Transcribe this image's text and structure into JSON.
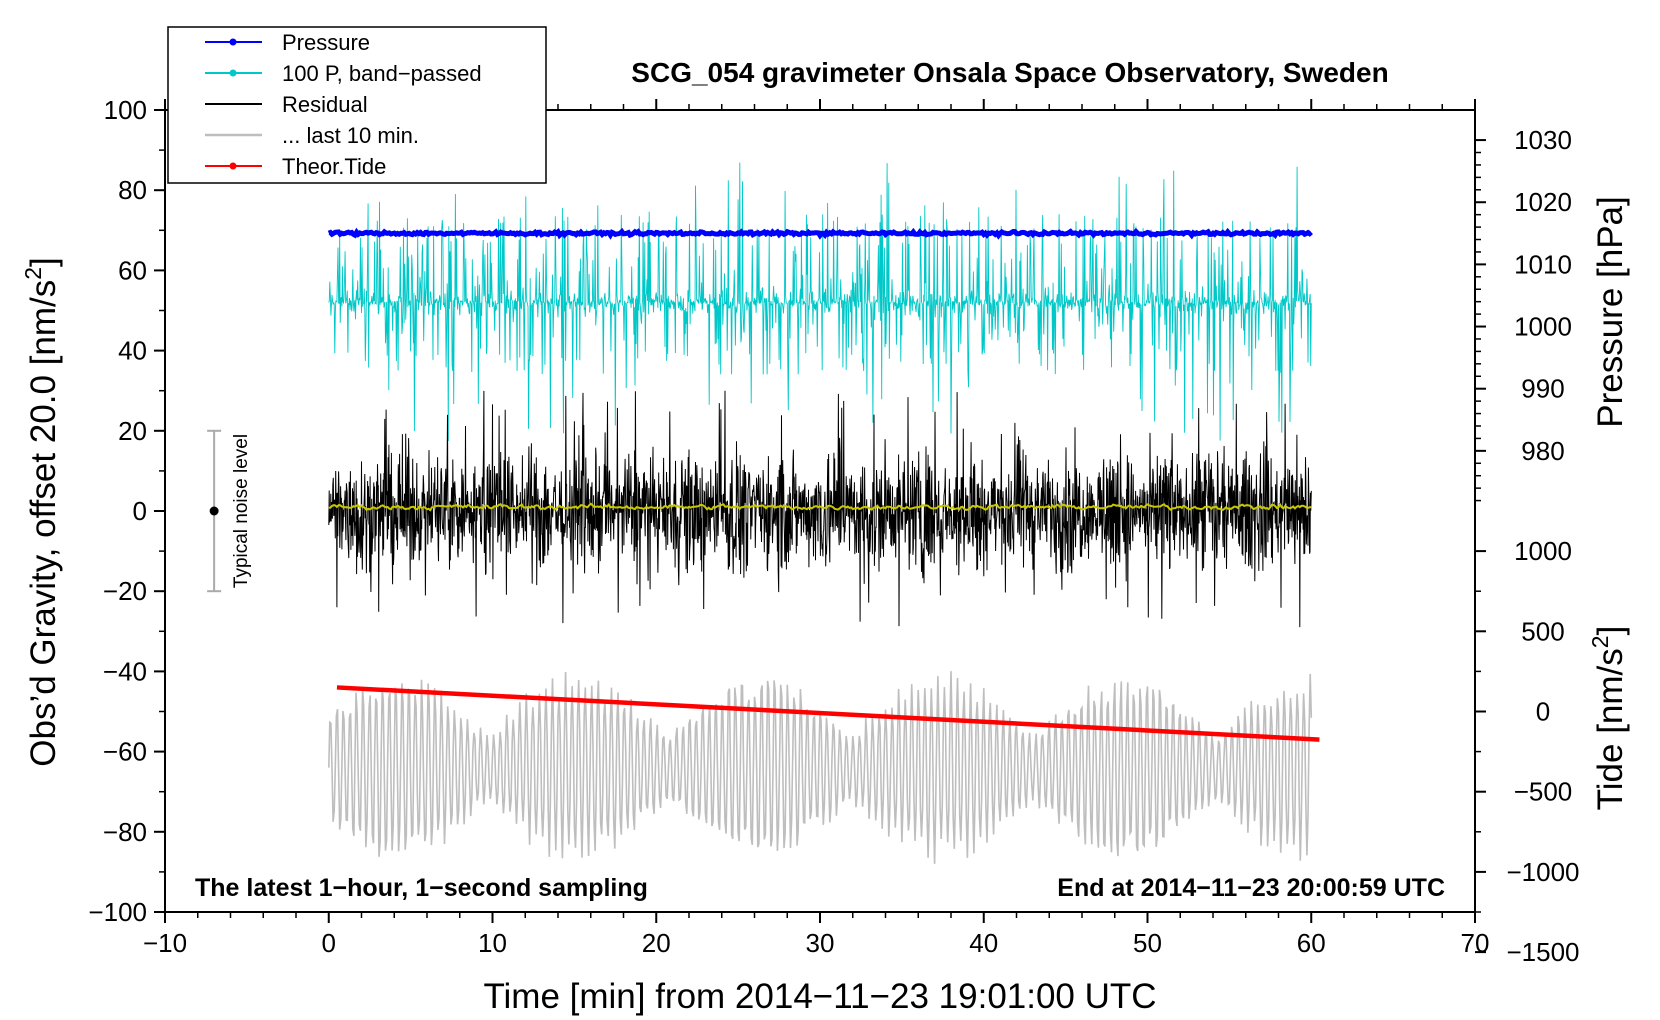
{
  "chart_data": {
    "type": "line",
    "title": "SCG_054 gravimeter Onsala Space Observatory, Sweden",
    "xlabel": "Time [min] from 2014−11−23 19:01:00 UTC",
    "ylabel_left": "Obs’d Gravity, offset 20.0 [nm/s²]",
    "ylabel_left_parts": [
      "Obs’d Gravity, offset 20.0 [nm/s",
      "2",
      "]"
    ],
    "ylabel_right_pressure": "Pressure [hPa]",
    "ylabel_right_tide": "Tide [nm/s²]",
    "ylabel_right_tide_parts": [
      "Tide [nm/s",
      "2",
      "]"
    ],
    "xlim": [
      -10,
      70
    ],
    "ylim_left": [
      -100,
      100
    ],
    "x_ticks": [
      -10,
      0,
      10,
      20,
      30,
      40,
      50,
      60,
      70
    ],
    "x_tick_labels": [
      "−10",
      "0",
      "10",
      "20",
      "30",
      "40",
      "50",
      "60",
      "70"
    ],
    "y_left_ticks": [
      100,
      80,
      60,
      40,
      20,
      0,
      -20,
      -40,
      -60,
      -80,
      -100
    ],
    "y_left_tick_labels": [
      "100",
      "80",
      "60",
      "40",
      "20",
      "0",
      "−20",
      "−40",
      "−60",
      "−80",
      "−100"
    ],
    "pressure_axis": {
      "ticks": [
        1030,
        1020,
        1010,
        1000,
        990,
        980
      ],
      "tick_labels": [
        "1030",
        "1020",
        "1010",
        "1000",
        "990",
        "980"
      ],
      "gravity_at_1030": 92.5,
      "gravity_per_hpa": 1.55
    },
    "tide_axis": {
      "ticks": [
        1000,
        500,
        0,
        -500,
        -1000,
        -1500
      ],
      "tick_labels": [
        "1000",
        "500",
        "0",
        "−500",
        "−1000",
        "−1500"
      ],
      "gravity_at_0": -50,
      "gravity_per_unit": 0.04
    },
    "legend": [
      {
        "label": "Pressure",
        "color": "#0000ff",
        "marker": true
      },
      {
        "label": "100 P, band−passed",
        "color": "#00c8c8",
        "marker": true
      },
      {
        "label": "Residual",
        "color": "#000000",
        "marker": false
      },
      {
        "label": "... last 10 min.",
        "color": "#bebebe",
        "marker": false
      },
      {
        "label": "Theor.Tide",
        "color": "#ff0000",
        "marker": true
      }
    ],
    "series": [
      {
        "name": "Pressure",
        "axis": "pressure_hPa",
        "x_range": [
          0,
          60
        ],
        "values_approx": 1015,
        "color": "#0000ff"
      },
      {
        "name": "100 P, band-passed",
        "axis": "gravity",
        "x_range": [
          0,
          60
        ],
        "center": 52,
        "amplitude": 20,
        "color": "#00c8c8"
      },
      {
        "name": "Residual",
        "axis": "gravity",
        "x_range": [
          0,
          60
        ],
        "center": 0,
        "amplitude": 25,
        "color": "#000000"
      },
      {
        "name": "Residual smoothed",
        "axis": "gravity",
        "x_range": [
          0,
          60
        ],
        "center": 1,
        "color": "#c8c800"
      },
      {
        "name": "... last 10 min.",
        "axis": "gravity",
        "x_range": [
          0,
          60
        ],
        "center": -64,
        "amplitude": 25,
        "color": "#bebebe"
      },
      {
        "name": "Theor.Tide",
        "axis": "tide_nm_s2",
        "x": [
          0.5,
          60.5
        ],
        "values": [
          150,
          -175
        ],
        "color": "#ff0000"
      }
    ],
    "noise_bar": {
      "label": "Typical noise level",
      "x": -7,
      "center": 0,
      "half_range": 20
    },
    "annotations": {
      "bottom_left": "The latest 1−hour, 1−second sampling",
      "bottom_right": "End at 2014−11−23 20:00:59 UTC"
    }
  }
}
